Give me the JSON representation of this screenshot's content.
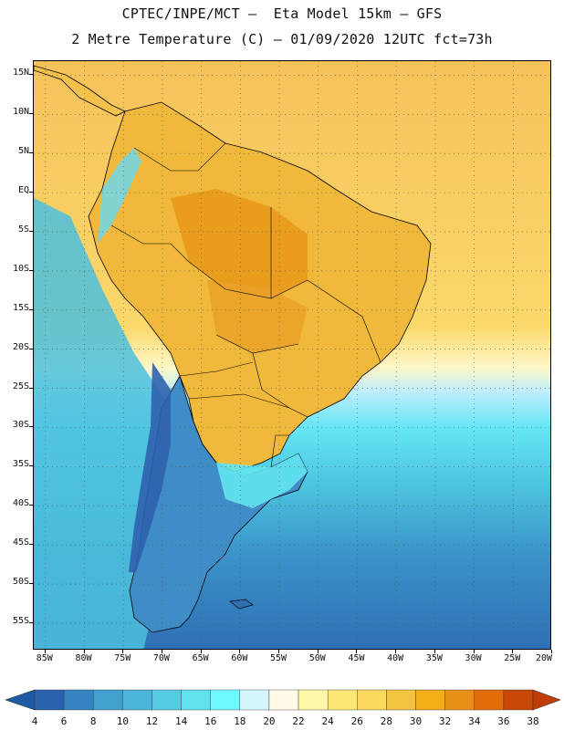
{
  "header": {
    "title_line1": "CPTEC/INPE/MCT –  Eta Model 15km – GFS",
    "title_line2": "2 Metre Temperature (C) – 01/09/2020 12UTC fct=73h"
  },
  "map": {
    "lat_labels": [
      "15N",
      "10N",
      "5N",
      "EQ",
      "5S",
      "10S",
      "15S",
      "20S",
      "25S",
      "30S",
      "35S",
      "40S",
      "45S",
      "50S",
      "55S"
    ],
    "lat_values": [
      15,
      10,
      5,
      0,
      -5,
      -10,
      -15,
      -20,
      -25,
      -30,
      -35,
      -40,
      -45,
      -50,
      -55
    ],
    "lon_labels": [
      "85W",
      "80W",
      "75W",
      "70W",
      "65W",
      "60W",
      "55W",
      "50W",
      "45W",
      "40W",
      "35W",
      "30W",
      "25W",
      "20W"
    ],
    "lon_values": [
      -85,
      -80,
      -75,
      -70,
      -65,
      -60,
      -55,
      -50,
      -45,
      -40,
      -35,
      -30,
      -25,
      -20
    ],
    "lat_range": [
      -58.5,
      16.8
    ],
    "lon_range": [
      -86.5,
      -20.0
    ],
    "grid": "dotted",
    "ocean_north_color": "#f3bd45",
    "ocean_south_color": "#4aaed0"
  },
  "colorbar": {
    "labels": [
      "4",
      "6",
      "8",
      "10",
      "12",
      "14",
      "16",
      "18",
      "20",
      "22",
      "24",
      "26",
      "28",
      "30",
      "32",
      "34",
      "36",
      "38"
    ],
    "colors": [
      "#2a63ad",
      "#3783c2",
      "#42a0cf",
      "#4cb6da",
      "#57cbe3",
      "#5fe2ec",
      "#6ef8ff",
      "#d4f7ff",
      "#fffbe8",
      "#fff8a8",
      "#ffe775",
      "#fcd85e",
      "#f4c441",
      "#f2ad17",
      "#e98f17",
      "#e26c09",
      "#c94806"
    ],
    "low_arrow_color": "#1f5aa4",
    "high_arrow_color": "#c23c07"
  }
}
